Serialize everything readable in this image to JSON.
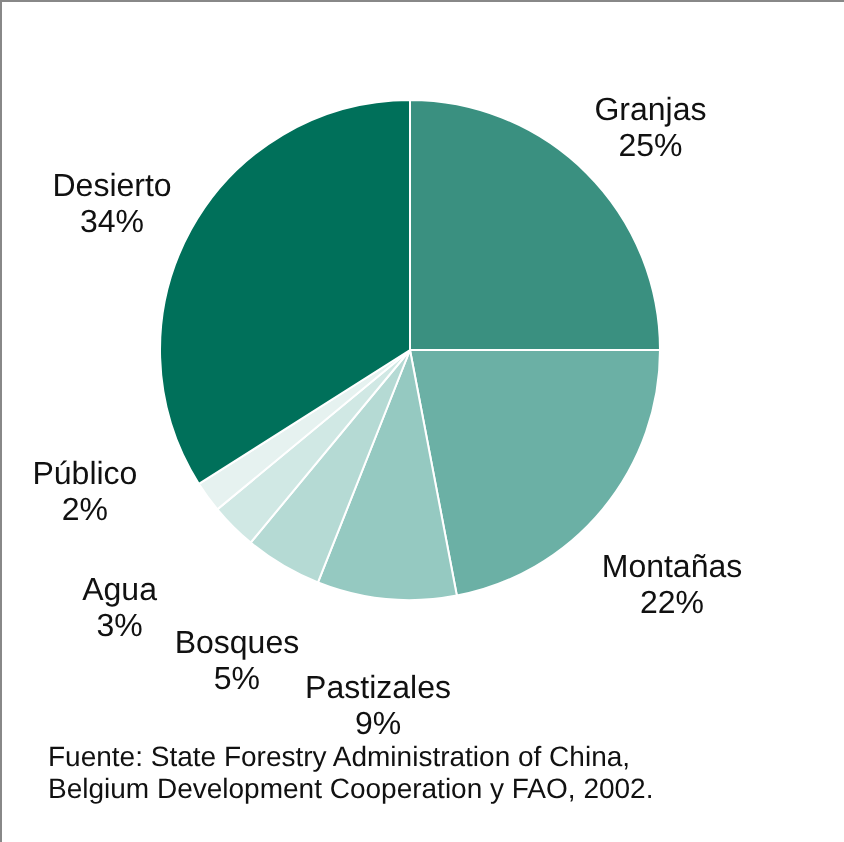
{
  "chart_data": {
    "type": "pie",
    "categories": [
      "Granjas",
      "Montañas",
      "Pastizales",
      "Bosques",
      "Agua",
      "Público",
      "Desierto"
    ],
    "values": [
      25,
      22,
      9,
      5,
      3,
      2,
      34
    ],
    "value_labels": [
      "25%",
      "22%",
      "9%",
      "5%",
      "3%",
      "2%",
      "34%"
    ],
    "colors": [
      "#3a9080",
      "#6bb0a5",
      "#95c9c1",
      "#b5dad4",
      "#d0e8e4",
      "#e6f2f0",
      "#00705a"
    ],
    "annotations": [
      "Fuente: State Forestry Administration of China,\nBelgium Development Cooperation y FAO, 2002."
    ]
  }
}
